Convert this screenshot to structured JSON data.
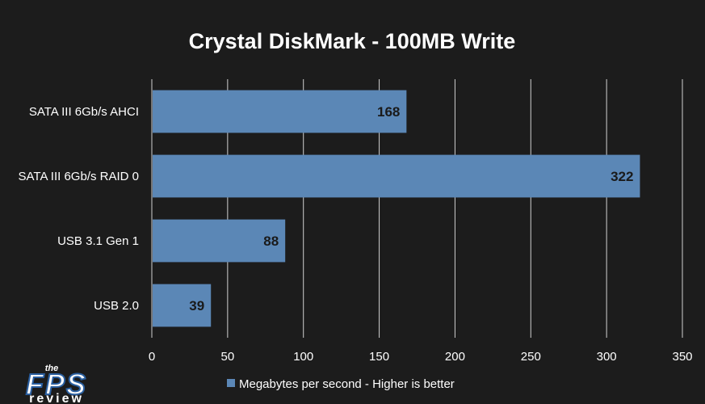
{
  "chart_data": {
    "type": "bar",
    "orientation": "horizontal",
    "title": "Crystal DiskMark - 100MB Write",
    "categories": [
      "SATA III 6Gb/s AHCI",
      "SATA III 6Gb/s RAID 0",
      "USB 3.1 Gen 1",
      "USB 2.0"
    ],
    "series": [
      {
        "name": "Megabytes per second - Higher is better",
        "values": [
          168,
          322,
          88,
          39
        ],
        "color": "#5b87b6"
      }
    ],
    "xlim": [
      0,
      350
    ],
    "xticks": [
      0,
      50,
      100,
      150,
      200,
      250,
      300,
      350
    ],
    "grid": true,
    "legend_position": "bottom"
  },
  "logo": {
    "the": "the",
    "fps": "FPS",
    "review": "review"
  },
  "colors": {
    "background": "#1c1c1c",
    "bar": "#5b87b6",
    "grid": "#d0d0d0"
  }
}
